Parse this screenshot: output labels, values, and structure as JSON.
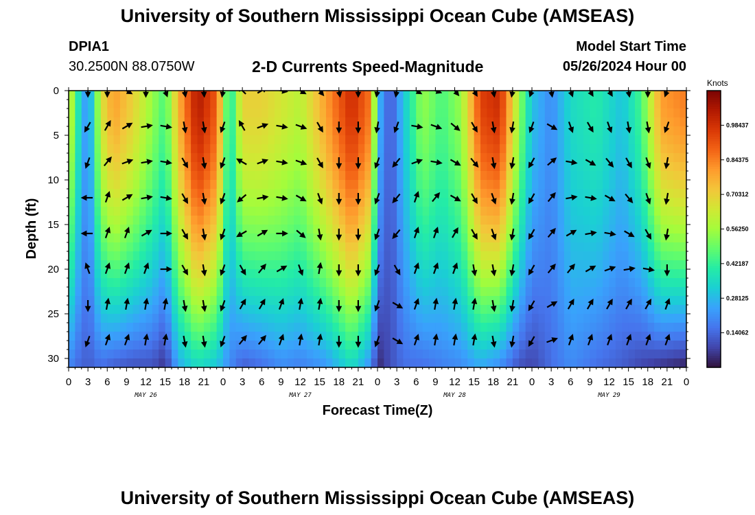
{
  "header": {
    "title": "University of Southern Mississippi Ocean Cube (AMSEAS)",
    "station": "DPIA1",
    "coords": "30.2500N  88.0750W",
    "subtitle": "2-D Currents Speed-Magnitude",
    "model_start_label": "Model Start Time",
    "model_start_value": "05/26/2024 Hour 00"
  },
  "footer": {
    "title": "University of Southern Mississippi Ocean Cube (AMSEAS)"
  },
  "colors": {
    "palette": [
      "#30123b",
      "#4145ab",
      "#4675ed",
      "#39a2fc",
      "#1bcfd4",
      "#24eca6",
      "#61fc6c",
      "#a4fc3b",
      "#d1e834",
      "#f3c63a",
      "#fe9b2d",
      "#f36315",
      "#d93806",
      "#b11901",
      "#7a0403"
    ],
    "arrow": "#000000"
  },
  "chart_data": {
    "type": "heatmap",
    "title": "2-D Currents Speed-Magnitude",
    "xlabel": "Forecast Time(Z)",
    "ylabel": "Depth (ft)",
    "ylim": [
      31,
      0
    ],
    "xlim": [
      0,
      96
    ],
    "x_tick_labels": [
      "0",
      "3",
      "6",
      "9",
      "12",
      "15",
      "18",
      "21",
      "0",
      "3",
      "6",
      "9",
      "12",
      "15",
      "18",
      "21",
      "0",
      "3",
      "6",
      "9",
      "12",
      "15",
      "18",
      "21",
      "0",
      "3",
      "6",
      "9",
      "12",
      "15",
      "18",
      "21",
      "0"
    ],
    "y_ticks": [
      0,
      5,
      10,
      15,
      20,
      25,
      30
    ],
    "date_labels": [
      {
        "text": "MAY 26",
        "hour": 12
      },
      {
        "text": "MAY 27",
        "hour": 36
      },
      {
        "text": "MAY 28",
        "hour": 60
      },
      {
        "text": "MAY 29",
        "hour": 84
      }
    ],
    "colorbar": {
      "unit": "Knots",
      "min": 0.0,
      "max": 1.125,
      "labels": [
        "0.98437",
        "0.84375",
        "0.70312",
        "0.56250",
        "0.42187",
        "0.28125",
        "0.14062"
      ],
      "values": [
        0.98437,
        0.84375,
        0.70312,
        0.5625,
        0.42187,
        0.28125,
        0.14062
      ]
    },
    "speed_profile": [
      {
        "hour": 0,
        "surface": 0.7,
        "bottom": 0.2
      },
      {
        "hour": 1,
        "surface": 0.45,
        "bottom": 0.15
      },
      {
        "hour": 3,
        "surface": 0.18,
        "bottom": 0.12
      },
      {
        "hour": 5,
        "surface": 0.65,
        "bottom": 0.15
      },
      {
        "hour": 7,
        "surface": 0.8,
        "bottom": 0.12
      },
      {
        "hour": 10,
        "surface": 0.7,
        "bottom": 0.1
      },
      {
        "hour": 13,
        "surface": 0.55,
        "bottom": 0.1
      },
      {
        "hour": 15,
        "surface": 0.45,
        "bottom": 0.05
      },
      {
        "hour": 17,
        "surface": 0.75,
        "bottom": 0.25
      },
      {
        "hour": 20,
        "surface": 1.05,
        "bottom": 0.35
      },
      {
        "hour": 23,
        "surface": 0.9,
        "bottom": 0.3
      },
      {
        "hour": 25,
        "surface": 0.35,
        "bottom": 0.2
      },
      {
        "hour": 27,
        "surface": 0.7,
        "bottom": 0.12
      },
      {
        "hour": 30,
        "surface": 0.7,
        "bottom": 0.15
      },
      {
        "hour": 33,
        "surface": 0.65,
        "bottom": 0.2
      },
      {
        "hour": 36,
        "surface": 0.6,
        "bottom": 0.18
      },
      {
        "hour": 40,
        "surface": 0.8,
        "bottom": 0.22
      },
      {
        "hour": 44,
        "surface": 1.0,
        "bottom": 0.35
      },
      {
        "hour": 47,
        "surface": 0.85,
        "bottom": 0.2
      },
      {
        "hour": 48,
        "surface": 0.3,
        "bottom": 0.03
      },
      {
        "hour": 50,
        "surface": 0.1,
        "bottom": 0.1
      },
      {
        "hour": 52,
        "surface": 0.3,
        "bottom": 0.15
      },
      {
        "hour": 55,
        "surface": 0.55,
        "bottom": 0.15
      },
      {
        "hour": 58,
        "surface": 0.45,
        "bottom": 0.18
      },
      {
        "hour": 61,
        "surface": 0.55,
        "bottom": 0.2
      },
      {
        "hour": 64,
        "surface": 0.95,
        "bottom": 0.25
      },
      {
        "hour": 67,
        "surface": 1.0,
        "bottom": 0.2
      },
      {
        "hour": 70,
        "surface": 0.55,
        "bottom": 0.1
      },
      {
        "hour": 72,
        "surface": 0.3,
        "bottom": 0.08
      },
      {
        "hour": 75,
        "surface": 0.2,
        "bottom": 0.15
      },
      {
        "hour": 78,
        "surface": 0.35,
        "bottom": 0.2
      },
      {
        "hour": 82,
        "surface": 0.4,
        "bottom": 0.15
      },
      {
        "hour": 86,
        "surface": 0.3,
        "bottom": 0.12
      },
      {
        "hour": 89,
        "surface": 0.45,
        "bottom": 0.08
      },
      {
        "hour": 92,
        "surface": 0.8,
        "bottom": 0.05
      },
      {
        "hour": 96,
        "surface": 0.85,
        "bottom": 0.02
      }
    ],
    "arrow_depths_ft": [
      0,
      4,
      8,
      12,
      16,
      20,
      24,
      28
    ],
    "arrow_columns": [
      {
        "hour": 3,
        "dirs": [
          180,
          210,
          200,
          270,
          270,
          340,
          180,
          200
        ]
      },
      {
        "hour": 6,
        "dirs": [
          180,
          30,
          40,
          20,
          20,
          20,
          10,
          20
        ]
      },
      {
        "hour": 9,
        "dirs": [
          120,
          60,
          70,
          60,
          20,
          20,
          10,
          20
        ]
      },
      {
        "hour": 12,
        "dirs": [
          180,
          80,
          80,
          80,
          60,
          20,
          10,
          10
        ]
      },
      {
        "hour": 15,
        "dirs": [
          160,
          100,
          100,
          100,
          90,
          90,
          10,
          10
        ]
      },
      {
        "hour": 18,
        "dirs": [
          170,
          170,
          150,
          150,
          150,
          150,
          170,
          170
        ]
      },
      {
        "hour": 21,
        "dirs": [
          175,
          170,
          170,
          170,
          170,
          170,
          170,
          170
        ]
      },
      {
        "hour": 24,
        "dirs": [
          190,
          200,
          200,
          200,
          200,
          200,
          200,
          200
        ]
      },
      {
        "hour": 27,
        "dirs": [
          315,
          330,
          300,
          230,
          240,
          150,
          30,
          40
        ]
      },
      {
        "hour": 30,
        "dirs": [
          60,
          70,
          70,
          80,
          60,
          40,
          30,
          40
        ]
      },
      {
        "hour": 33,
        "dirs": [
          100,
          100,
          100,
          100,
          90,
          60,
          20,
          20
        ]
      },
      {
        "hour": 36,
        "dirs": [
          120,
          110,
          110,
          120,
          130,
          160,
          10,
          10
        ]
      },
      {
        "hour": 39,
        "dirs": [
          140,
          150,
          150,
          160,
          170,
          10,
          10,
          10
        ]
      },
      {
        "hour": 42,
        "dirs": [
          170,
          180,
          180,
          180,
          180,
          180,
          180,
          180
        ]
      },
      {
        "hour": 45,
        "dirs": [
          180,
          180,
          180,
          180,
          180,
          180,
          180,
          180
        ]
      },
      {
        "hour": 48,
        "dirs": [
          190,
          190,
          200,
          200,
          200,
          200,
          200,
          200
        ]
      },
      {
        "hour": 51,
        "dirs": [
          190,
          200,
          220,
          220,
          220,
          150,
          120,
          120
        ]
      },
      {
        "hour": 54,
        "dirs": [
          120,
          100,
          70,
          20,
          20,
          20,
          20,
          20
        ]
      },
      {
        "hour": 57,
        "dirs": [
          110,
          110,
          100,
          40,
          20,
          20,
          10,
          10
        ]
      },
      {
        "hour": 60,
        "dirs": [
          140,
          130,
          120,
          120,
          30,
          20,
          10,
          10
        ]
      },
      {
        "hour": 63,
        "dirs": [
          150,
          150,
          140,
          150,
          150,
          170,
          10,
          10
        ]
      },
      {
        "hour": 66,
        "dirs": [
          170,
          170,
          170,
          160,
          160,
          170,
          170,
          170
        ]
      },
      {
        "hour": 69,
        "dirs": [
          190,
          190,
          190,
          190,
          190,
          190,
          190,
          190
        ]
      },
      {
        "hour": 72,
        "dirs": [
          200,
          200,
          210,
          210,
          210,
          210,
          210,
          210
        ]
      },
      {
        "hour": 75,
        "dirs": [
          170,
          120,
          50,
          40,
          40,
          40,
          60,
          70
        ]
      },
      {
        "hour": 78,
        "dirs": [
          160,
          160,
          100,
          80,
          60,
          40,
          30,
          20
        ]
      },
      {
        "hour": 81,
        "dirs": [
          150,
          150,
          120,
          100,
          80,
          60,
          30,
          20
        ]
      },
      {
        "hour": 84,
        "dirs": [
          150,
          160,
          140,
          120,
          100,
          70,
          30,
          20
        ]
      },
      {
        "hour": 87,
        "dirs": [
          170,
          170,
          150,
          140,
          120,
          80,
          30,
          20
        ]
      },
      {
        "hour": 90,
        "dirs": [
          180,
          170,
          160,
          160,
          150,
          100,
          30,
          20
        ]
      },
      {
        "hour": 93,
        "dirs": [
          200,
          200,
          190,
          190,
          190,
          180,
          20,
          20
        ]
      }
    ]
  }
}
